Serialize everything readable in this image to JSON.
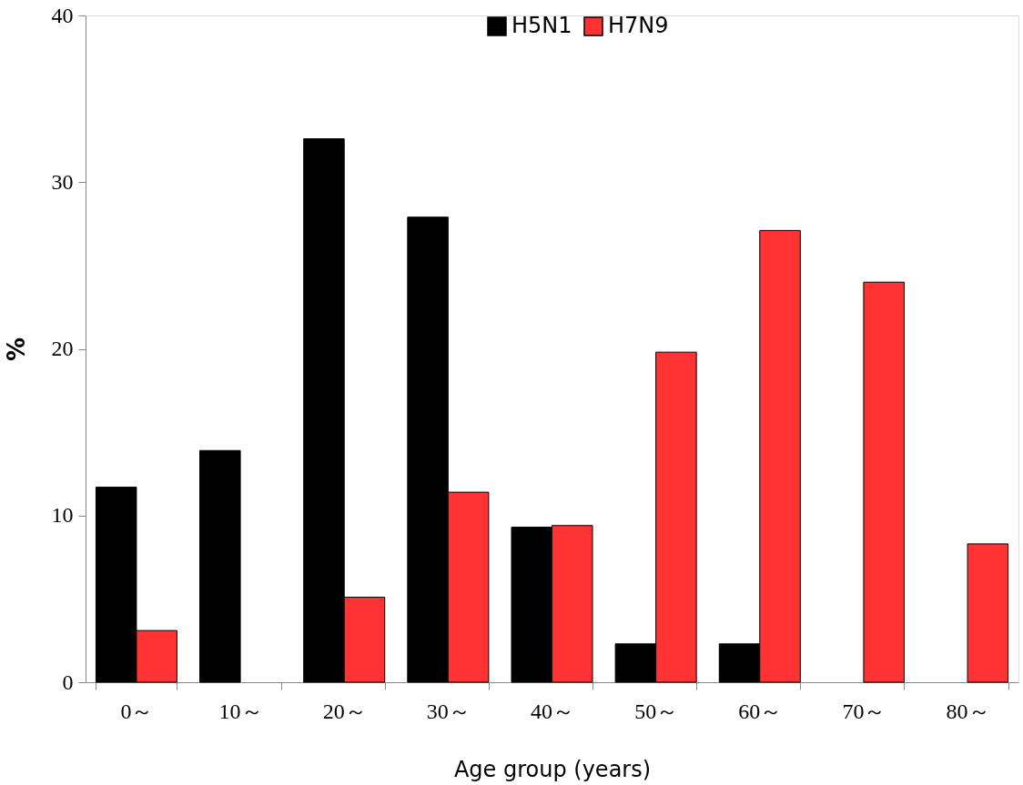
{
  "chart_data": {
    "type": "bar",
    "ylabel": "%",
    "xlabel": "Age group (years)",
    "categories": [
      "0～",
      "10～",
      "20～",
      "30～",
      "40～",
      "50～",
      "60～",
      "70～",
      "80～"
    ],
    "series": [
      {
        "name": "H5N1",
        "color": "#000000",
        "values": [
          11.7,
          13.9,
          32.6,
          27.9,
          9.3,
          2.3,
          2.3,
          0,
          0
        ]
      },
      {
        "name": "H7N9",
        "color": "#ff3333",
        "values": [
          3.1,
          0,
          5.1,
          11.4,
          9.4,
          19.8,
          27.1,
          24.0,
          8.3
        ]
      }
    ],
    "ylim": [
      0,
      40
    ],
    "yticks": [
      0,
      10,
      20,
      30,
      40
    ],
    "grid": false,
    "legend": "top"
  }
}
